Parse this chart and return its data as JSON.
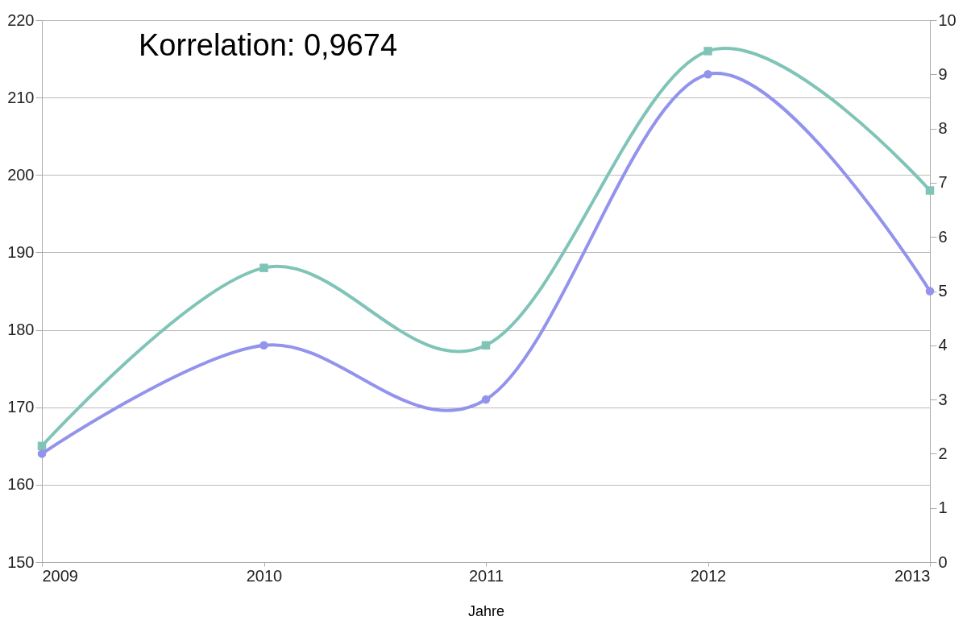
{
  "chart_data": {
    "type": "line",
    "xlabel": "Jahre",
    "x": [
      2009,
      2010,
      2011,
      2012,
      2013
    ],
    "xlim": [
      2009,
      2013
    ],
    "xticks": [
      2009,
      2010,
      2011,
      2012,
      2013
    ],
    "ylim": [
      150,
      220
    ],
    "yticks": [
      150,
      160,
      170,
      180,
      190,
      200,
      210,
      220
    ],
    "y2lim": [
      0,
      10
    ],
    "y2ticks": [
      0,
      1,
      2,
      3,
      4,
      5,
      6,
      7,
      8,
      9,
      10
    ],
    "grid": "y",
    "series": [
      {
        "color": "#80c4b8",
        "values": [
          165,
          188,
          178,
          216,
          198
        ],
        "marker": "square"
      },
      {
        "color": "#9393ee",
        "values": [
          2,
          4,
          3,
          9,
          5
        ],
        "marker": "circle",
        "axis": "y2"
      }
    ],
    "annotations": [
      "Korrelation: 0,9674"
    ]
  }
}
